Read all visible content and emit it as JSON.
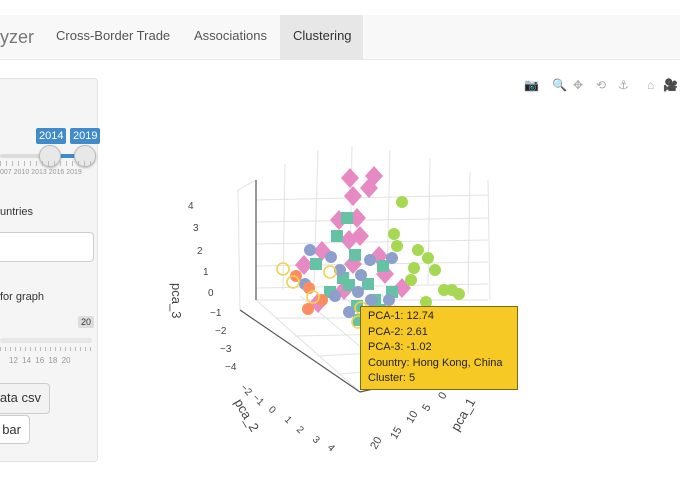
{
  "nav": {
    "brand": "yzer",
    "tabs": [
      {
        "label": "Cross-Border Trade",
        "active": false
      },
      {
        "label": "Associations",
        "active": false
      },
      {
        "label": "Clustering",
        "active": true
      }
    ]
  },
  "sidebar": {
    "year_range": {
      "min_value": "2014",
      "max_value": "2019",
      "tick_labels": [
        "007",
        "2010",
        "2013",
        "2016",
        "2019"
      ]
    },
    "countries_label": "untries",
    "countries_input_value": "",
    "graph_label": "for graph",
    "graph_slider": {
      "value": "20",
      "tick_labels": [
        "12",
        "14",
        "16",
        "18",
        "20"
      ]
    },
    "download_button_label": "ata csv",
    "sidebar_button_label": "bar"
  },
  "modebar": {
    "icons": [
      "camera-icon",
      "zoom-icon",
      "pan-icon",
      "orbit-rotation-icon",
      "turntable-rotation-icon",
      "home-icon",
      "camera-view-icon"
    ],
    "glyphs": [
      "📷",
      "🔍",
      "✥",
      "⟲",
      "⚓",
      "⌂",
      "🎥"
    ]
  },
  "plot": {
    "axis_titles": {
      "x": "pca_1",
      "y": "pca_2",
      "z": "pca_3"
    },
    "z_ticks": [
      "4",
      "3",
      "2",
      "1",
      "0",
      "−1",
      "−2",
      "−3",
      "−4"
    ],
    "y_ticks": [
      "−2",
      "−1",
      "0",
      "1",
      "2",
      "3",
      "4"
    ],
    "x_ticks": [
      "20",
      "15",
      "10",
      "5",
      "0"
    ],
    "cluster_colors": {
      "c1": "#fc8d62",
      "c2": "#8da0cb",
      "c3": "#66c2a5",
      "c4": "#e78ac3",
      "c5": "#f0d34e",
      "c6": "#a6d854"
    }
  },
  "tooltip": {
    "lines": [
      "PCA-1: 12.74",
      "PCA-2: 2.61",
      "PCA-3: -1.02",
      "Country: Hong Kong, China",
      "Cluster: 5"
    ]
  }
}
